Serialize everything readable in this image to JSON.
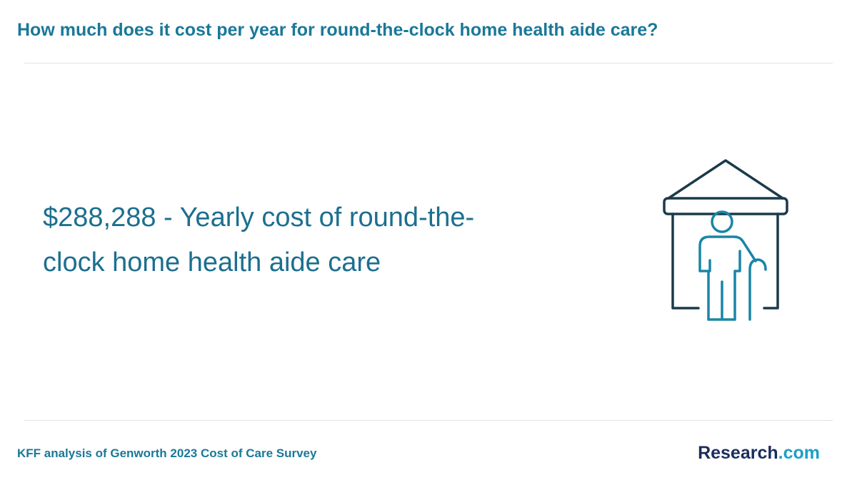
{
  "header": {
    "title": "How much does it cost per year for round-the-clock home health aide care?"
  },
  "main": {
    "text": "$288,288 - Yearly cost of round-the-clock home health aide care"
  },
  "footer": {
    "source": "KFF analysis of Genworth 2023 Cost of Care Survey",
    "brand": {
      "name": "Research",
      "suffix": ".com"
    }
  }
}
